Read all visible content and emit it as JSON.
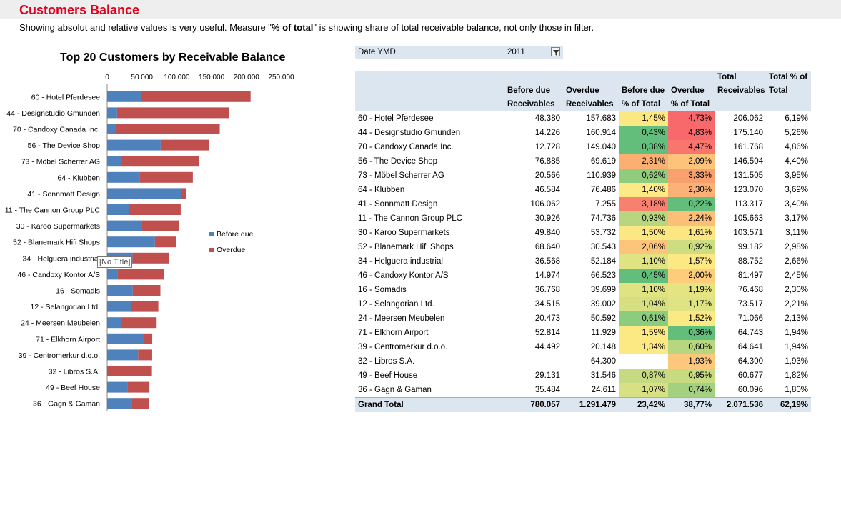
{
  "page": {
    "title": "Customers Balance",
    "subtitle_pre": "Showing absolut and relative values is very useful. Measure \"",
    "subtitle_bold": "% of total",
    "subtitle_post": "\" is showing share of total receivable balance, not only those in filter."
  },
  "tooltip": "[No Title]",
  "chart_data": {
    "type": "bar",
    "orientation": "horizontal",
    "stacked": true,
    "title": "Top 20 Customers by Receivable Balance",
    "categories": [
      "60 - Hotel Pferdesee",
      "44 - Designstudio Gmunden",
      "70 - Candoxy Canada Inc.",
      "56 - The Device Shop",
      "73 - Möbel Scherrer AG",
      "64 - Klubben",
      "41 - Sonnmatt Design",
      "11 - The Cannon Group PLC",
      "30 - Karoo Supermarkets",
      "52 - Blanemark Hifi Shops",
      "34 - Helguera industrial",
      "46 - Candoxy Kontor A/S",
      "16 - Somadis",
      "12 - Selangorian Ltd.",
      "24 - Meersen Meubelen",
      "71 - Elkhorn Airport",
      "39 - Centromerkur d.o.o.",
      "32 - Libros S.A.",
      "49 - Beef House",
      "36 - Gagn & Gaman"
    ],
    "series": [
      {
        "name": "Before due",
        "color": "#4f81bd",
        "values": [
          48380,
          14226,
          12728,
          76885,
          20566,
          46584,
          106062,
          30926,
          49840,
          68640,
          36568,
          14974,
          36768,
          34515,
          20473,
          52814,
          44492,
          0,
          29131,
          35484
        ]
      },
      {
        "name": "Overdue",
        "color": "#c0504d",
        "values": [
          157683,
          160914,
          149040,
          69619,
          110939,
          76486,
          7255,
          74736,
          53732,
          30543,
          52184,
          66523,
          39699,
          39002,
          50592,
          11929,
          20148,
          64300,
          31546,
          24611
        ]
      }
    ],
    "xlim": [
      0,
      250000
    ],
    "xticks": [
      "0",
      "50.000",
      "100.000",
      "150.000",
      "200.000",
      "250.000"
    ],
    "legend_position": "right"
  },
  "filter": {
    "label": "Date YMD",
    "value": "2011"
  },
  "table": {
    "headers": [
      "",
      "Before due Receivables",
      "Overdue Receivables",
      "Before due % of Total",
      "Overdue % of Total",
      "Total Receivables",
      "Total % of Total"
    ],
    "header_rows": [
      [
        "",
        "",
        "",
        "",
        "",
        "Total",
        "Total % of"
      ],
      [
        "",
        "Before due",
        "Overdue",
        "Before due",
        "Overdue",
        "Receivables",
        "Total"
      ],
      [
        "",
        "Receivables",
        "Receivables",
        "% of Total",
        "% of Total",
        "",
        ""
      ]
    ],
    "rows": [
      [
        "60 - Hotel Pferdesee",
        "48.380",
        "157.683",
        "1,45%",
        "4,73%",
        "206.062",
        "6,19%"
      ],
      [
        "44 - Designstudio Gmunden",
        "14.226",
        "160.914",
        "0,43%",
        "4,83%",
        "175.140",
        "5,26%"
      ],
      [
        "70 - Candoxy Canada Inc.",
        "12.728",
        "149.040",
        "0,38%",
        "4,47%",
        "161.768",
        "4,86%"
      ],
      [
        "56 - The Device Shop",
        "76.885",
        "69.619",
        "2,31%",
        "2,09%",
        "146.504",
        "4,40%"
      ],
      [
        "73 - Möbel Scherrer AG",
        "20.566",
        "110.939",
        "0,62%",
        "3,33%",
        "131.505",
        "3,95%"
      ],
      [
        "64 - Klubben",
        "46.584",
        "76.486",
        "1,40%",
        "2,30%",
        "123.070",
        "3,69%"
      ],
      [
        "41 - Sonnmatt Design",
        "106.062",
        "7.255",
        "3,18%",
        "0,22%",
        "113.317",
        "3,40%"
      ],
      [
        "11 - The Cannon Group PLC",
        "30.926",
        "74.736",
        "0,93%",
        "2,24%",
        "105.663",
        "3,17%"
      ],
      [
        "30 - Karoo Supermarkets",
        "49.840",
        "53.732",
        "1,50%",
        "1,61%",
        "103.571",
        "3,11%"
      ],
      [
        "52 - Blanemark Hifi Shops",
        "68.640",
        "30.543",
        "2,06%",
        "0,92%",
        "99.182",
        "2,98%"
      ],
      [
        "34 - Helguera industrial",
        "36.568",
        "52.184",
        "1,10%",
        "1,57%",
        "88.752",
        "2,66%"
      ],
      [
        "46 - Candoxy Kontor A/S",
        "14.974",
        "66.523",
        "0,45%",
        "2,00%",
        "81.497",
        "2,45%"
      ],
      [
        "16 - Somadis",
        "36.768",
        "39.699",
        "1,10%",
        "1,19%",
        "76.468",
        "2,30%"
      ],
      [
        "12 - Selangorian Ltd.",
        "34.515",
        "39.002",
        "1,04%",
        "1,17%",
        "73.517",
        "2,21%"
      ],
      [
        "24 - Meersen Meubelen",
        "20.473",
        "50.592",
        "0,61%",
        "1,52%",
        "71.066",
        "2,13%"
      ],
      [
        "71 - Elkhorn Airport",
        "52.814",
        "11.929",
        "1,59%",
        "0,36%",
        "64.743",
        "1,94%"
      ],
      [
        "39 - Centromerkur d.o.o.",
        "44.492",
        "20.148",
        "1,34%",
        "0,60%",
        "64.641",
        "1,94%"
      ],
      [
        "32 - Libros S.A.",
        "",
        "64.300",
        "",
        "1,93%",
        "64.300",
        "1,93%"
      ],
      [
        "49 - Beef House",
        "29.131",
        "31.546",
        "0,87%",
        "0,95%",
        "60.677",
        "1,82%"
      ],
      [
        "36 - Gagn & Gaman",
        "35.484",
        "24.611",
        "1,07%",
        "0,74%",
        "60.096",
        "1,80%"
      ]
    ],
    "grand_total": [
      "Grand Total",
      "780.057",
      "1.291.479",
      "23,42%",
      "38,77%",
      "2.071.536",
      "62,19%"
    ],
    "heat_colors": {
      "before_pct": [
        "#fce883",
        "#63be7b",
        "#63be7b",
        "#fbb071",
        "#91cb7d",
        "#fdea84",
        "#f8806e",
        "#b7d67f",
        "#fce883",
        "#fcc57a",
        "#dfe382",
        "#63be7b",
        "#dfe382",
        "#d6e082",
        "#8ccc7e",
        "#fde984",
        "#fee883",
        "#ffffff",
        "#c5da81",
        "#d7e082"
      ],
      "overdue_pct": [
        "#f8696b",
        "#f8696b",
        "#f8766d",
        "#fcc47a",
        "#f9a06f",
        "#fcb176",
        "#63be7b",
        "#fdbe78",
        "#fce583",
        "#ccde81",
        "#fde884",
        "#fdcd7c",
        "#e4e482",
        "#e0e383",
        "#fbea84",
        "#63be7b",
        "#b6d67f",
        "#fdc87b",
        "#c7dc81",
        "#a4d07f"
      ]
    }
  }
}
